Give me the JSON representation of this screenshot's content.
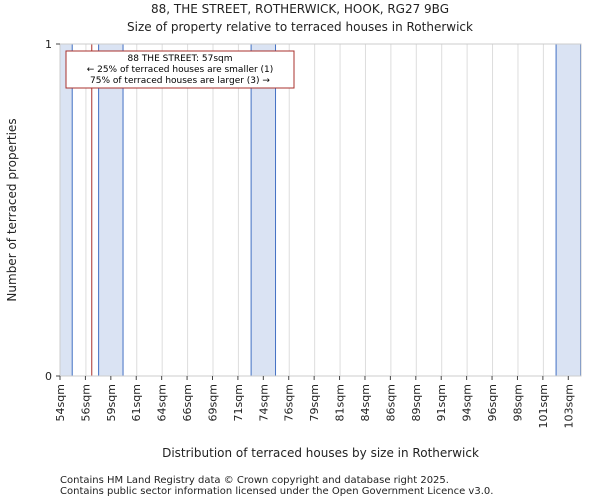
{
  "chart_data": {
    "type": "bar",
    "title": "88, THE STREET, ROTHERWICK, HOOK, RG27 9BG",
    "subtitle": "Size of property relative to terraced houses in Rotherwick",
    "xlabel": "Distribution of terraced houses by size in Rotherwick",
    "ylabel": "Number of terraced properties",
    "categories": [
      "54sqm",
      "56sqm",
      "59sqm",
      "61sqm",
      "64sqm",
      "66sqm",
      "69sqm",
      "71sqm",
      "74sqm",
      "76sqm",
      "79sqm",
      "81sqm",
      "84sqm",
      "86sqm",
      "89sqm",
      "91sqm",
      "94sqm",
      "96sqm",
      "98sqm",
      "101sqm",
      "103sqm"
    ],
    "values": [
      1,
      0,
      1,
      0,
      0,
      0,
      0,
      0,
      1,
      0,
      0,
      0,
      0,
      0,
      0,
      0,
      0,
      0,
      0,
      0,
      1
    ],
    "yticks": [
      "0",
      "1"
    ],
    "ylim": [
      0,
      1
    ],
    "grid": true,
    "bar_color": "#dae3f3",
    "bar_edge_color": "#4472c4",
    "marker": {
      "category_position": 1.25,
      "color": "#a8302c",
      "lines": [
        "88 THE STREET: 57sqm",
        "← 25% of terraced houses are smaller (1)",
        "75% of terraced houses are larger (3) →"
      ]
    }
  },
  "footer": {
    "line1": "Contains HM Land Registry data © Crown copyright and database right 2025.",
    "line2": "Contains public sector information licensed under the Open Government Licence v3.0."
  }
}
